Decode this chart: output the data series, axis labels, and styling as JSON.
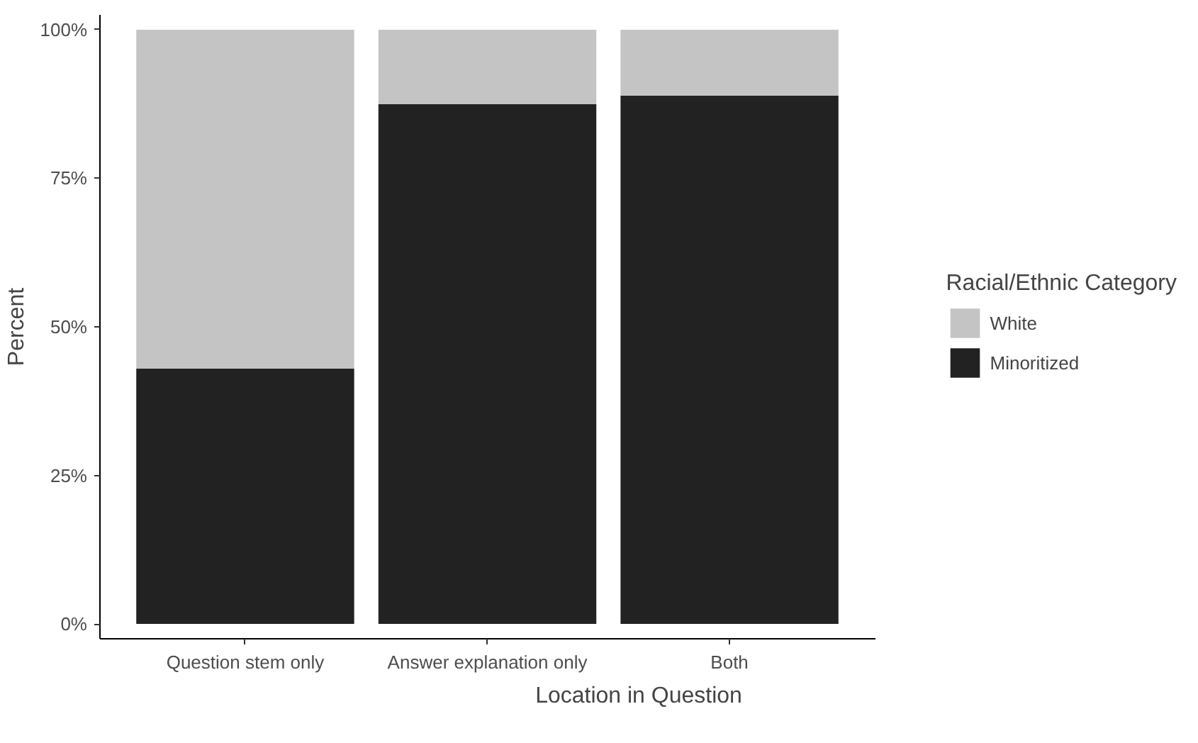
{
  "chart_data": {
    "type": "bar",
    "stacked": true,
    "xlabel": "Location in Question",
    "ylabel": "Percent",
    "legend_title": "Racial/Ethnic Category",
    "legend": "right",
    "categories": [
      "Question stem only",
      "Answer explanation only",
      "Both"
    ],
    "series": [
      {
        "name": "Minoritized",
        "color": "#222222",
        "values": [
          43,
          87.5,
          88.9
        ]
      },
      {
        "name": "White",
        "color": "#c4c4c4",
        "values": [
          57,
          12.5,
          11.1
        ]
      }
    ],
    "ylim": [
      -2.5,
      102.5
    ],
    "yticks": [
      {
        "value": 0,
        "label": "0%"
      },
      {
        "value": 25,
        "label": "25%"
      },
      {
        "value": 50,
        "label": "50%"
      },
      {
        "value": 75,
        "label": "75%"
      },
      {
        "value": 100,
        "label": "100%"
      }
    ],
    "grid": false
  }
}
